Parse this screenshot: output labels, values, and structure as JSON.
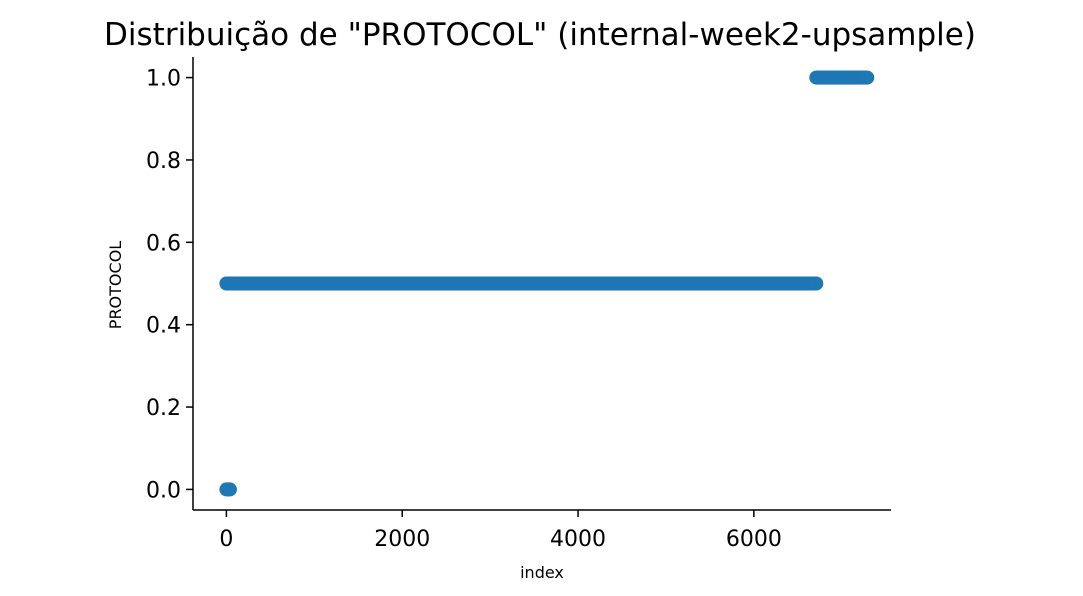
{
  "chart_data": {
    "type": "scatter",
    "title": "Distribuição de \"PROTOCOL\" (internal-week2-upsample)",
    "xlabel": "index",
    "ylabel": "PROTOCOL",
    "xlim": [
      -380,
      7560
    ],
    "ylim": [
      -0.05,
      1.05
    ],
    "xticks": [
      0,
      2000,
      4000,
      6000
    ],
    "xtick_labels": [
      "0",
      "2000",
      "4000",
      "6000"
    ],
    "yticks": [
      0.0,
      0.2,
      0.4,
      0.6,
      0.8,
      1.0
    ],
    "ytick_labels": [
      "0.0",
      "0.2",
      "0.4",
      "0.6",
      "0.8",
      "1.0"
    ],
    "grid": false,
    "marker_color": "#1f77b4",
    "series": [
      {
        "segments": [
          {
            "x_start": 0,
            "x_end": 40,
            "y": 0.0
          },
          {
            "x_start": 0,
            "x_end": 6710,
            "y": 0.5
          },
          {
            "x_start": 6710,
            "x_end": 7290,
            "y": 1.0
          }
        ]
      }
    ]
  }
}
